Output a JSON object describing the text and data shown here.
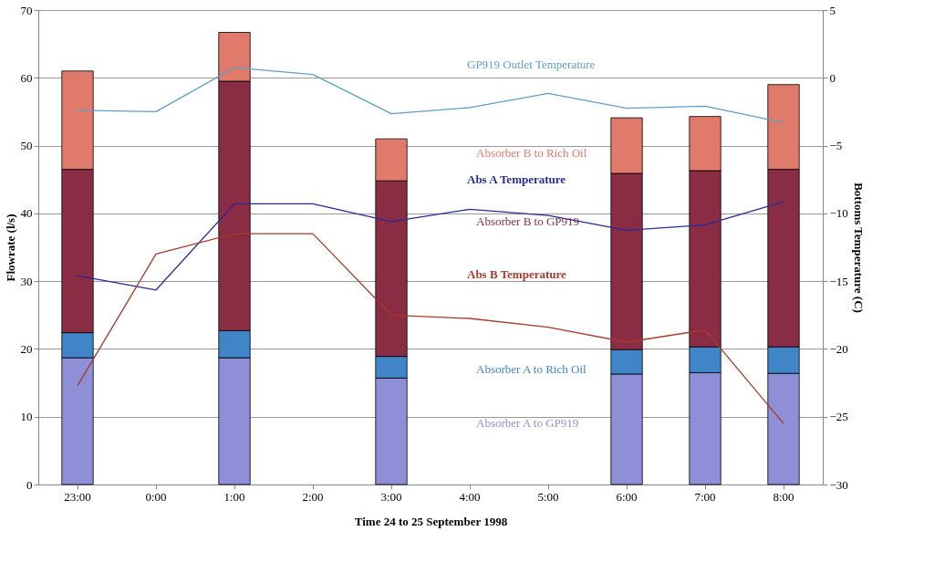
{
  "chart_data": {
    "type": "bar",
    "xlabel": "Time 24 to 25 September 1998",
    "ylabel": "Flowrate (l/s)",
    "y2label": "Bottoms Temperature (C)",
    "categories": [
      "23:00",
      "0:00",
      "1:00",
      "2:00",
      "3:00",
      "4:00",
      "5:00",
      "6:00",
      "7:00",
      "8:00"
    ],
    "stacked": true,
    "grid": "y",
    "legend": false,
    "ylim": [
      0,
      70
    ],
    "yticks": [
      0,
      10,
      20,
      30,
      40,
      50,
      60,
      70
    ],
    "y2lim": [
      -30,
      5
    ],
    "y2ticks": [
      -30,
      -25,
      -20,
      -15,
      -10,
      -5,
      0,
      5
    ],
    "series": [
      {
        "name": "Absorber A to GP919",
        "color": "#8f8fd8",
        "values": [
          18.7,
          null,
          18.7,
          null,
          15.7,
          null,
          null,
          16.3,
          16.5,
          16.4
        ]
      },
      {
        "name": "Absorber A to Rich Oil",
        "color": "#3f85c8",
        "values": [
          3.7,
          null,
          4.0,
          null,
          3.2,
          null,
          null,
          3.6,
          3.8,
          3.9
        ]
      },
      {
        "name": "Absorber B to GP919",
        "color": "#8b2c45",
        "values": [
          24.1,
          null,
          36.8,
          null,
          25.9,
          null,
          null,
          26.0,
          26.0,
          26.2
        ]
      },
      {
        "name": "Absorber B to Rich Oil",
        "color": "#e07a6a",
        "values": [
          14.5,
          null,
          7.2,
          null,
          6.2,
          null,
          null,
          8.2,
          8.0,
          12.5
        ]
      },
      {
        "name": "GP919 Outlet Temperature",
        "type": "line",
        "axis": "y2",
        "color": "#5f9fc8",
        "values": [
          -2.4,
          -2.5,
          0.75,
          0.25,
          -2.65,
          -2.2,
          -1.15,
          -2.25,
          -2.1,
          -3.3
        ]
      },
      {
        "name": "Abs A Temperature",
        "type": "line",
        "axis": "y2",
        "color": "#2a2a9a",
        "values": [
          -14.6,
          -15.65,
          -9.3,
          -9.3,
          -10.6,
          -9.7,
          -10.15,
          -11.25,
          -10.85,
          -9.15
        ]
      },
      {
        "name": "Abs B Temperature",
        "type": "line",
        "axis": "y2",
        "color": "#a83a2a",
        "values": [
          -22.7,
          -13.0,
          -11.5,
          -11.5,
          -17.5,
          -17.75,
          -18.4,
          -19.5,
          -18.6,
          -25.5
        ]
      }
    ]
  }
}
